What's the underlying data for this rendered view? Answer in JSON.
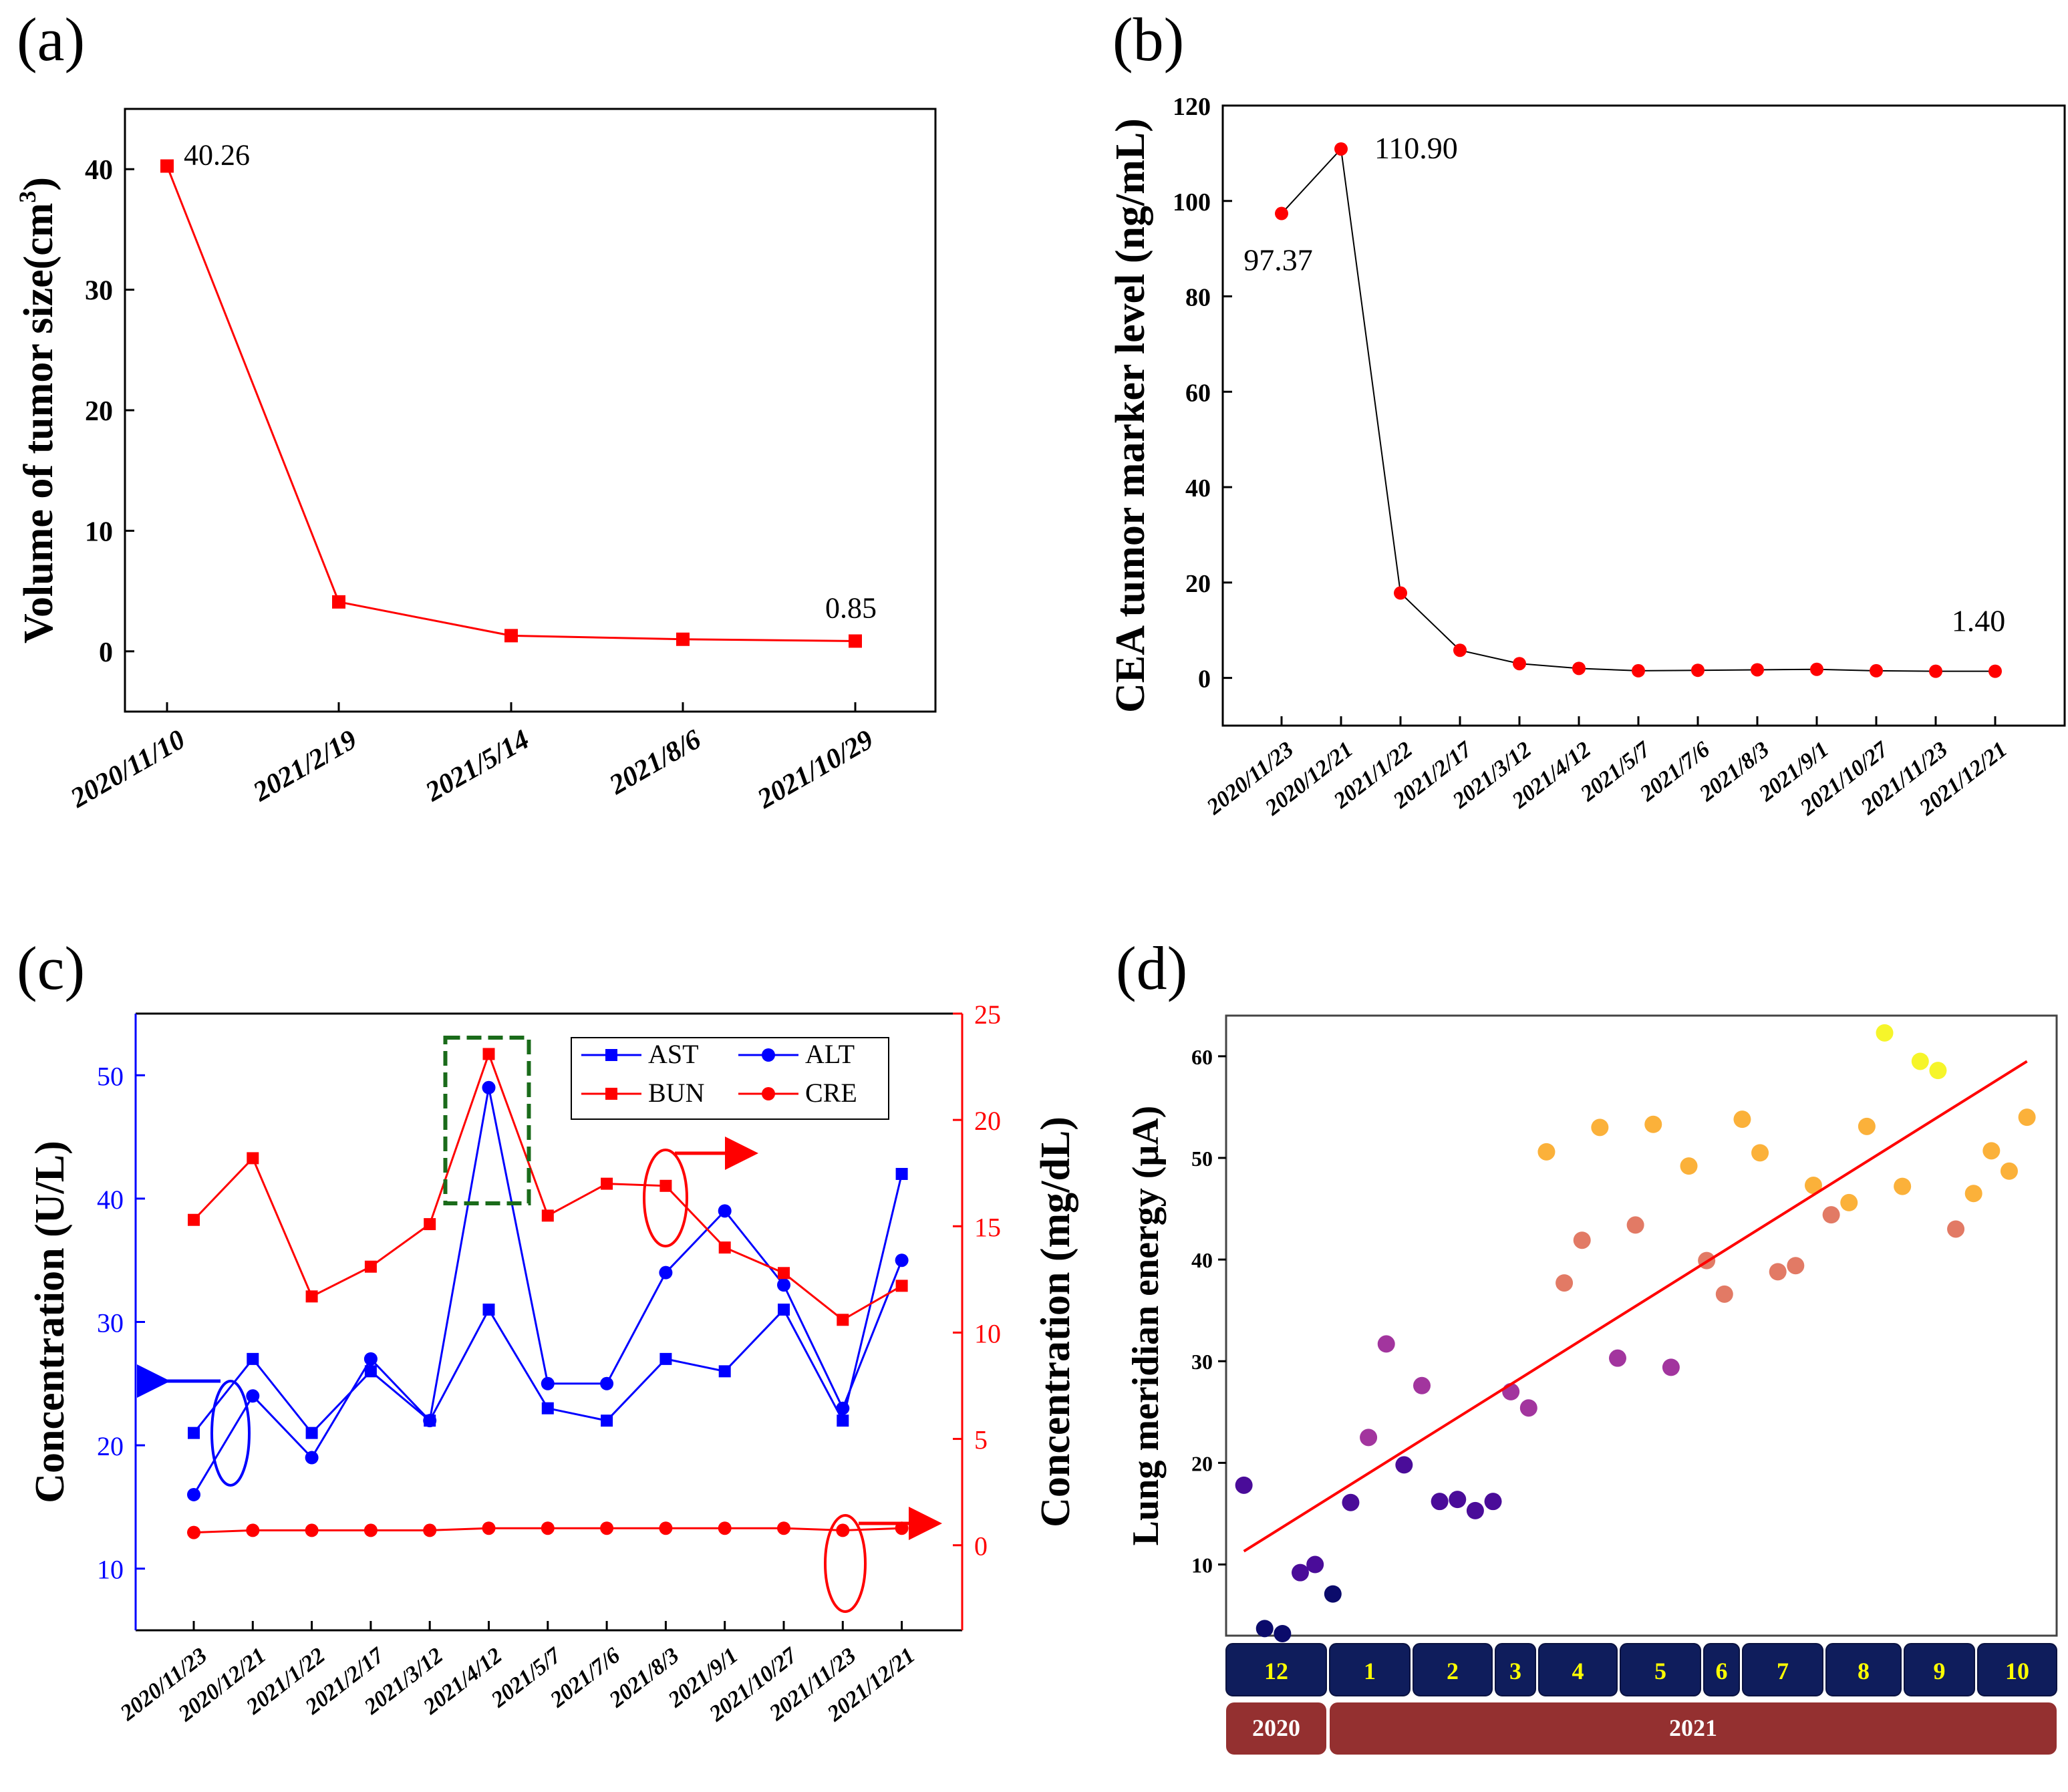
{
  "chart_data": [
    {
      "panel": "(a)",
      "type": "line",
      "categories": [
        "2020/11/10",
        "2021/2/19",
        "2021/5/14",
        "2021/8/6",
        "2021/10/29"
      ],
      "values": [
        40.26,
        4.1,
        1.3,
        1.0,
        0.85
      ],
      "ylabel": "Volume of tumor size(cm",
      "ylabel_sup": "3",
      "ylabel_close": ")",
      "ylim": [
        -5,
        45
      ],
      "yticks": [
        0,
        10,
        20,
        30,
        40
      ],
      "annotations": [
        {
          "index": 0,
          "text": "40.26"
        },
        {
          "index": 4,
          "text": "0.85"
        }
      ],
      "color": "#ff0000"
    },
    {
      "panel": "(b)",
      "type": "line",
      "categories": [
        "2020/11/23",
        "2020/12/21",
        "2021/1/22",
        "2021/2/17",
        "2021/3/12",
        "2021/4/12",
        "2021/5/7",
        "2021/7/6",
        "2021/8/3",
        "2021/9/1",
        "2021/10/27",
        "2021/11/23",
        "2021/12/21"
      ],
      "values": [
        97.37,
        110.9,
        17.8,
        5.8,
        3.0,
        2.0,
        1.5,
        1.6,
        1.7,
        1.8,
        1.5,
        1.4,
        1.4
      ],
      "ylabel": "CEA tumor marker level (ng/mL)",
      "ylim": [
        -10,
        120
      ],
      "yticks": [
        0,
        20,
        40,
        60,
        80,
        100,
        120
      ],
      "annotations": [
        {
          "index": 0,
          "text": "97.37"
        },
        {
          "index": 1,
          "text": "110.90"
        },
        {
          "index": 12,
          "text": "1.40"
        }
      ],
      "marker_color": "#ff0000",
      "line_color": "#000000"
    },
    {
      "panel": "(c)",
      "type": "line",
      "categories": [
        "2020/11/23",
        "2020/12/21",
        "2021/1/22",
        "2021/2/17",
        "2021/3/12",
        "2021/4/12",
        "2021/5/7",
        "2021/7/6",
        "2021/8/3",
        "2021/9/1",
        "2021/10/27",
        "2021/11/23",
        "2021/12/21"
      ],
      "ylabel_left": "Concentration (U/L)",
      "ylabel_right": "Concentration (mg/dL)",
      "ylim_left": [
        5,
        55
      ],
      "ylim_right": [
        -4,
        25
      ],
      "yticks_left": [
        10,
        20,
        30,
        40,
        50
      ],
      "yticks_right": [
        0,
        5,
        10,
        15,
        20,
        25
      ],
      "series": [
        {
          "name": "AST",
          "axis": "left",
          "marker": "square",
          "color": "#0000ff",
          "values": [
            21,
            27,
            21,
            26,
            22,
            31,
            23,
            22,
            27,
            26,
            31,
            22,
            42
          ]
        },
        {
          "name": "ALT",
          "axis": "left",
          "marker": "circle",
          "color": "#0000ff",
          "values": [
            16,
            24,
            19,
            27,
            22,
            49,
            25,
            25,
            34,
            39,
            33,
            23,
            35
          ]
        },
        {
          "name": "BUN",
          "axis": "right",
          "marker": "square",
          "color": "#ff0000",
          "values": [
            15.3,
            18.2,
            11.7,
            13.1,
            15.1,
            23.1,
            15.5,
            17.0,
            16.9,
            14.0,
            12.8,
            10.6,
            12.2
          ]
        },
        {
          "name": "CRE",
          "axis": "right",
          "marker": "circle",
          "color": "#ff0000",
          "values": [
            0.6,
            0.7,
            0.7,
            0.7,
            0.7,
            0.8,
            0.8,
            0.8,
            0.8,
            0.8,
            0.8,
            0.7,
            0.8
          ]
        }
      ],
      "legend_position": "top-right"
    },
    {
      "panel": "(d)",
      "type": "scatter",
      "ylabel": "Lung meridian energy (μA)",
      "ylim": [
        3,
        64
      ],
      "yticks": [
        10,
        20,
        30,
        40,
        50,
        60
      ],
      "points": [
        {
          "x": 0.6,
          "y": 17.8
        },
        {
          "x": 1.3,
          "y": 3.7
        },
        {
          "x": 1.9,
          "y": 3.2
        },
        {
          "x": 2.5,
          "y": 9.2
        },
        {
          "x": 3.0,
          "y": 10.0
        },
        {
          "x": 3.6,
          "y": 7.1
        },
        {
          "x": 4.2,
          "y": 16.1
        },
        {
          "x": 4.8,
          "y": 22.5
        },
        {
          "x": 5.4,
          "y": 31.7
        },
        {
          "x": 6.0,
          "y": 19.8
        },
        {
          "x": 6.6,
          "y": 27.6
        },
        {
          "x": 7.2,
          "y": 16.2
        },
        {
          "x": 7.8,
          "y": 16.4
        },
        {
          "x": 8.4,
          "y": 15.3
        },
        {
          "x": 9.0,
          "y": 16.2
        },
        {
          "x": 9.6,
          "y": 27.0
        },
        {
          "x": 10.2,
          "y": 25.4
        },
        {
          "x": 10.8,
          "y": 50.6
        },
        {
          "x": 11.4,
          "y": 37.7
        },
        {
          "x": 12.0,
          "y": 41.9
        },
        {
          "x": 12.6,
          "y": 53.0
        },
        {
          "x": 13.2,
          "y": 30.3
        },
        {
          "x": 13.8,
          "y": 43.4
        },
        {
          "x": 14.4,
          "y": 53.3
        },
        {
          "x": 15.0,
          "y": 29.4
        },
        {
          "x": 15.6,
          "y": 49.2
        },
        {
          "x": 16.2,
          "y": 39.9
        },
        {
          "x": 16.8,
          "y": 36.6
        },
        {
          "x": 17.4,
          "y": 53.8
        },
        {
          "x": 18.0,
          "y": 50.5
        },
        {
          "x": 18.6,
          "y": 38.8
        },
        {
          "x": 19.2,
          "y": 39.4
        },
        {
          "x": 19.8,
          "y": 47.3
        },
        {
          "x": 20.4,
          "y": 44.4
        },
        {
          "x": 21.0,
          "y": 45.6
        },
        {
          "x": 21.6,
          "y": 53.1
        },
        {
          "x": 22.2,
          "y": 62.3
        },
        {
          "x": 22.8,
          "y": 47.2
        },
        {
          "x": 23.4,
          "y": 59.5
        },
        {
          "x": 24.0,
          "y": 58.6
        },
        {
          "x": 24.6,
          "y": 43.0
        },
        {
          "x": 25.2,
          "y": 46.5
        },
        {
          "x": 25.8,
          "y": 50.7
        },
        {
          "x": 26.4,
          "y": 48.7
        },
        {
          "x": 27.0,
          "y": 54.0
        }
      ],
      "xlim": [
        0,
        28
      ],
      "trend": {
        "x0": 0.6,
        "y0": 11.3,
        "x1": 27.0,
        "y1": 59.5,
        "color": "#ff0000"
      },
      "colormap": [
        "#0b0b6b",
        "#4a0c99",
        "#a2359e",
        "#e27a65",
        "#fbb13a",
        "#f6f52a"
      ],
      "months": [
        "12",
        "1",
        "2",
        "3",
        "4",
        "5",
        "6",
        "7",
        "8",
        "9",
        "10"
      ],
      "years": [
        "2020",
        "2021"
      ]
    }
  ]
}
